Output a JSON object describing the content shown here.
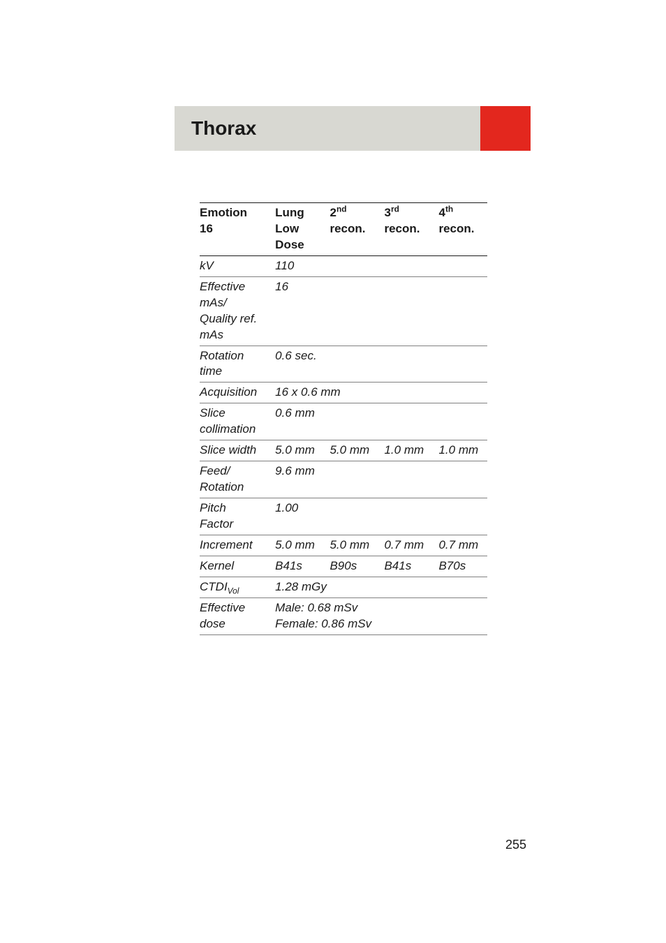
{
  "header": {
    "title": "Thorax",
    "gray_bg": "#d8d8d2",
    "red_bg": "#e3271e"
  },
  "table": {
    "header": {
      "c1_l1": "Emotion",
      "c1_l2": "16",
      "c2_l1": "Lung",
      "c2_l2": "Low",
      "c2_l3": "Dose",
      "c3_num": "2",
      "c3_ord": "nd",
      "c3_l2": "recon.",
      "c4_num": "3",
      "c4_ord": "rd",
      "c4_l2": "recon.",
      "c5_num": "4",
      "c5_ord": "th",
      "c5_l2": "recon."
    },
    "rows": {
      "kv": {
        "label": "kV",
        "v": "110"
      },
      "eff_mas": {
        "label_l1": "Effective",
        "label_l2": "mAs/",
        "label_l3": "Quality ref.",
        "label_l4": "mAs",
        "v": "16"
      },
      "rot_time": {
        "label_l1": "Rotation",
        "label_l2": "time",
        "v": "0.6 sec."
      },
      "acquisition": {
        "label": "Acquisition",
        "v": "16 x 0.6 mm"
      },
      "slice_coll": {
        "label_l1": "Slice",
        "label_l2": "collimation",
        "v": "0.6 mm"
      },
      "slice_width": {
        "label": "Slice width",
        "c2": "5.0 mm",
        "c3": "5.0 mm",
        "c4": "1.0 mm",
        "c5": "1.0 mm"
      },
      "feed_rot": {
        "label_l1": "Feed/",
        "label_l2": "Rotation",
        "v": "9.6 mm"
      },
      "pitch": {
        "label_l1": "Pitch",
        "label_l2": "Factor",
        "v": "1.00"
      },
      "increment": {
        "label": "Increment",
        "c2": "5.0 mm",
        "c3": "5.0 mm",
        "c4": "0.7 mm",
        "c5": "0.7 mm"
      },
      "kernel": {
        "label": "Kernel",
        "c2": "B41s",
        "c3": "B90s",
        "c4": "B41s",
        "c5": "B70s"
      },
      "ctdi": {
        "label_pre": "CTDI",
        "label_sub": "Vol",
        "v": "1.28 mGy"
      },
      "eff_dose": {
        "label_l1": "Effective",
        "label_l2": "dose",
        "v_l1": "Male: 0.68 mSv",
        "v_l2": "Female: 0.86 mSv"
      }
    }
  },
  "page_number": "255"
}
